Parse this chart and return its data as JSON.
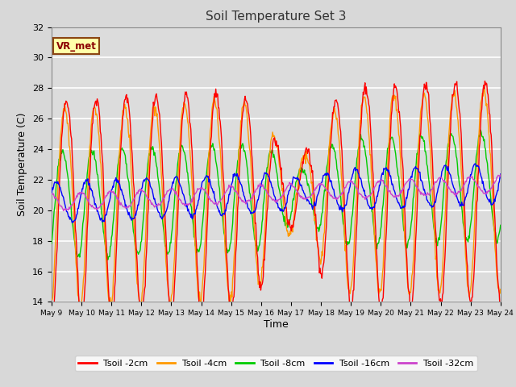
{
  "title": "Soil Temperature Set 3",
  "xlabel": "Time",
  "ylabel": "Soil Temperature (C)",
  "ylim": [
    14,
    32
  ],
  "yticks": [
    14,
    16,
    18,
    20,
    22,
    24,
    26,
    28,
    30,
    32
  ],
  "x_tick_days": [
    9,
    10,
    11,
    12,
    13,
    14,
    15,
    16,
    17,
    18,
    19,
    20,
    21,
    22,
    23,
    24
  ],
  "colors": {
    "Tsoil -2cm": "#ff0000",
    "Tsoil -4cm": "#ff9900",
    "Tsoil -8cm": "#00cc00",
    "Tsoil -16cm": "#0000ff",
    "Tsoil -32cm": "#cc44cc"
  },
  "bg_color": "#dcdcdc",
  "grid_color": "#ffffff",
  "fig_bg": "#d8d8d8",
  "annotation_text": "VR_met",
  "annotation_bg": "#ffffaa",
  "annotation_border": "#8B4513"
}
